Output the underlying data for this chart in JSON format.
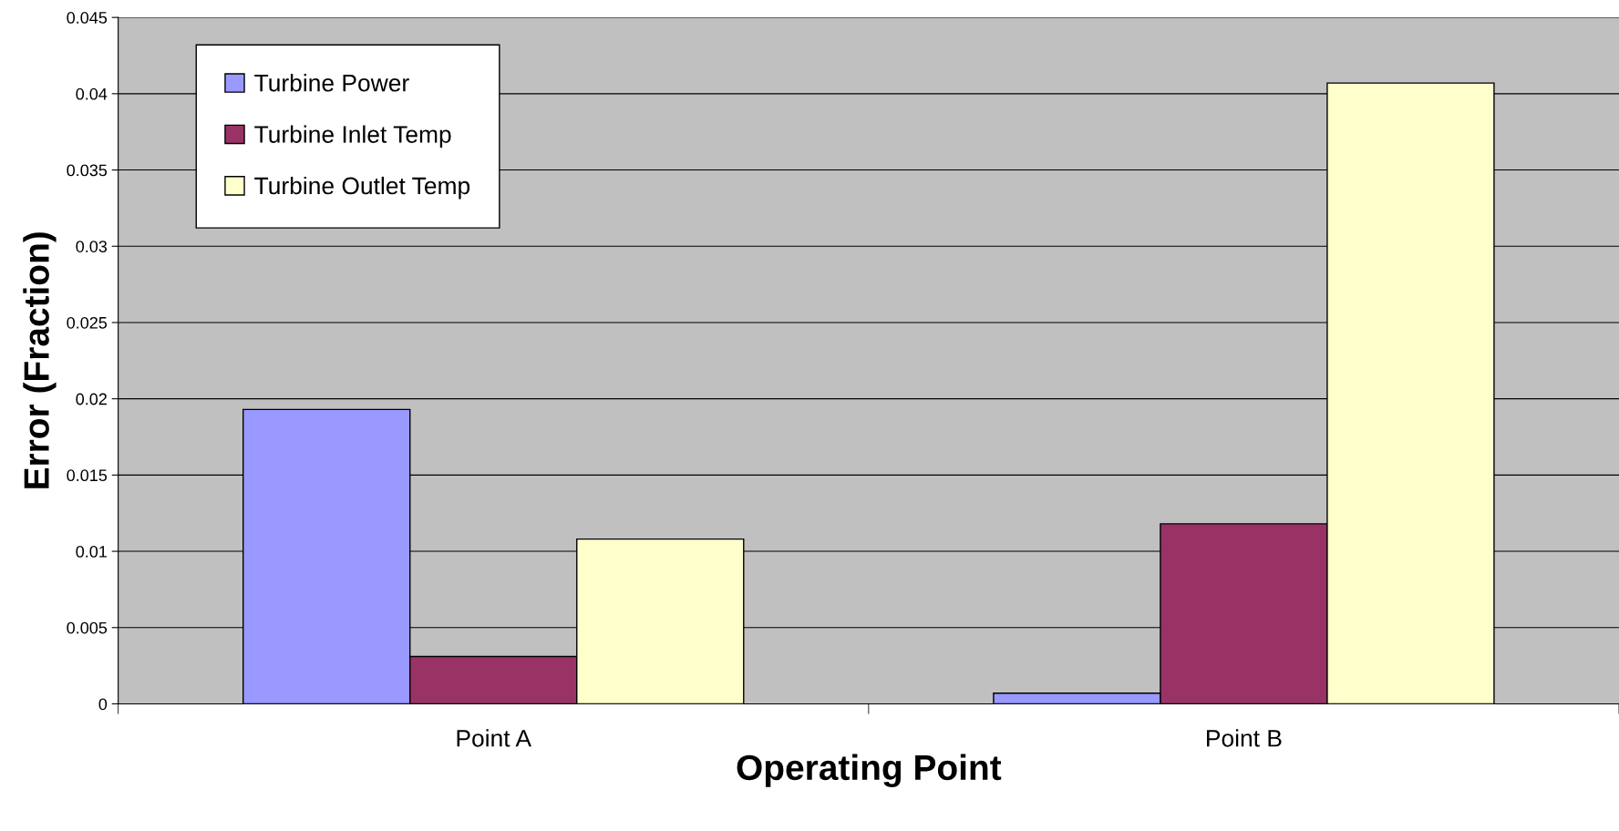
{
  "chart_data": {
    "type": "bar",
    "xlabel": "Operating Point",
    "ylabel": "Error (Fraction)",
    "categories": [
      "Point A",
      "Point B"
    ],
    "series": [
      {
        "name": "Turbine Power",
        "color": "#9999ff",
        "values": [
          0.0193,
          0.0007
        ]
      },
      {
        "name": "Turbine Inlet Temp",
        "color": "#993366",
        "values": [
          0.0031,
          0.0118
        ]
      },
      {
        "name": "Turbine Outlet Temp",
        "color": "#ffffcc",
        "values": [
          0.0108,
          0.0407
        ]
      }
    ],
    "ylim": [
      0,
      0.045
    ],
    "yticks": [
      0,
      0.005,
      0.01,
      0.015,
      0.02,
      0.025,
      0.03,
      0.035,
      0.04,
      0.045
    ],
    "grid": "y",
    "legend": "top left"
  }
}
